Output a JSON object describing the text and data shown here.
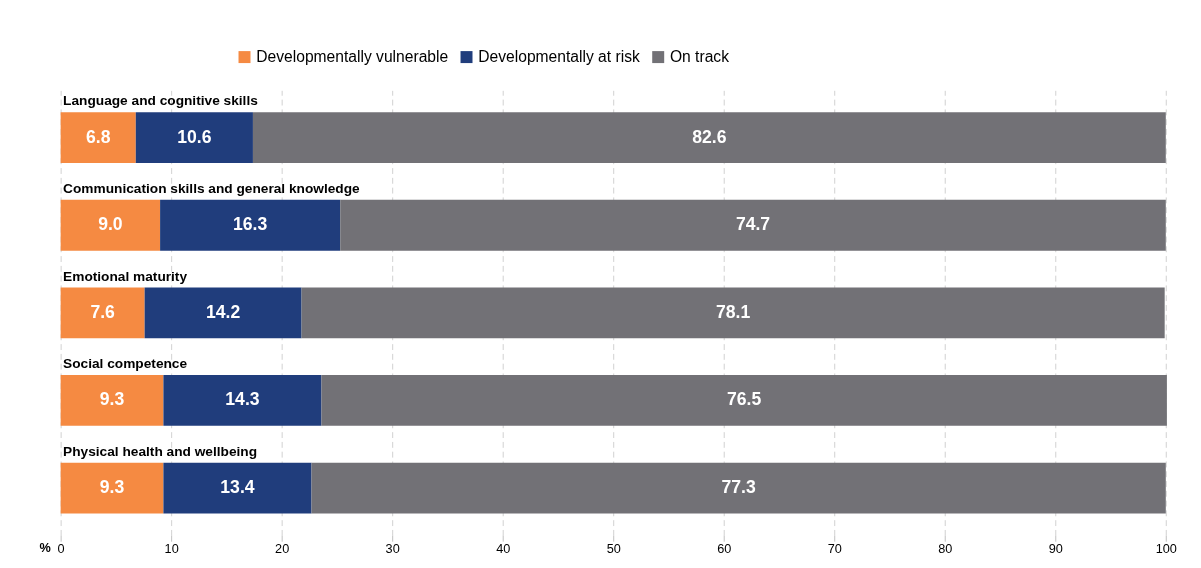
{
  "chart_data": {
    "type": "bar",
    "orientation": "horizontal",
    "stacked": true,
    "xlabel": "%",
    "categories": [
      "Language and cognitive skills",
      "Communication skills and general knowledge",
      "Emotional maturity",
      "Social competence",
      "Physical health and wellbeing"
    ],
    "series": [
      {
        "name": "Developmentally vulnerable",
        "color": "#f58a42",
        "values": [
          6.8,
          9.0,
          7.6,
          9.3,
          9.3
        ],
        "value_labels": [
          "6.8",
          "9.0",
          "7.6",
          "9.3",
          "9.3"
        ]
      },
      {
        "name": "Developmentally at risk",
        "color": "#203d7c",
        "values": [
          10.6,
          16.3,
          14.2,
          14.3,
          13.4
        ],
        "value_labels": [
          "10.6",
          "16.3",
          "14.2",
          "14.3",
          "13.4"
        ]
      },
      {
        "name": "On track",
        "color": "#727176",
        "values": [
          82.6,
          74.7,
          78.1,
          76.5,
          77.3
        ],
        "value_labels": [
          "82.6",
          "74.7",
          "78.1",
          "76.5",
          "77.3"
        ]
      }
    ],
    "xlim": [
      0,
      100
    ],
    "xticks": [
      0,
      10,
      20,
      30,
      40,
      50,
      60,
      70,
      80,
      90,
      100
    ],
    "grid": "x",
    "legend": "top"
  }
}
